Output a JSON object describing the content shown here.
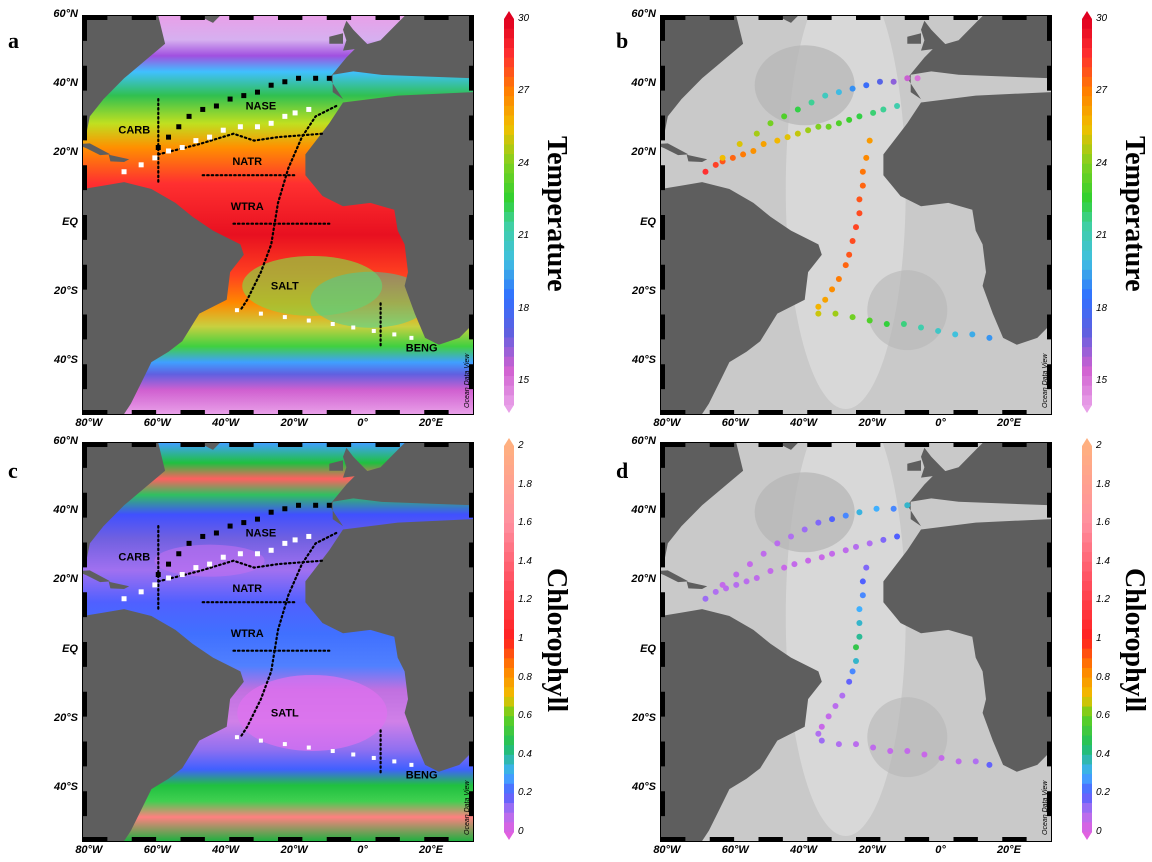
{
  "panels": [
    {
      "letter": "a",
      "variable": "Temperature",
      "background": "temperature-field",
      "dots": false
    },
    {
      "letter": "b",
      "variable": "Temperature",
      "background": "bathymetry-gray",
      "dots": true
    },
    {
      "letter": "c",
      "variable": "Chlorophyll",
      "background": "chlorophyll-field",
      "dots": false
    },
    {
      "letter": "d",
      "variable": "Chlorophyll",
      "background": "bathymetry-gray",
      "dots": true
    }
  ],
  "lat_labels": [
    "60°N",
    "40°N",
    "20°N",
    "EQ",
    "20°S",
    "40°S"
  ],
  "lon_labels": [
    "80°W",
    "60°W",
    "40°W",
    "20°W",
    "0°",
    "20°E"
  ],
  "temperature_scale": {
    "ticks": [
      "30",
      "27",
      "24",
      "21",
      "18",
      "15"
    ],
    "min": 14,
    "max": 30
  },
  "chlorophyll_scale": {
    "ticks": [
      "2",
      "1.8",
      "1.6",
      "1.4",
      "1.2",
      "1",
      "0.8",
      "0.6",
      "0.4",
      "0.2",
      "0"
    ],
    "min": 0,
    "max": 2
  },
  "regions_temperature": [
    "CARB",
    "NASE",
    "NATR",
    "WTRA",
    "SALT",
    "BENG"
  ],
  "regions_chlorophyll": [
    "CARB",
    "NASE",
    "NATR",
    "WTRA",
    "SATL",
    "BENG"
  ],
  "credit": "Ocean Data View",
  "colors": {
    "land": "#5e5e5e",
    "bathy": "#cfcfcf"
  }
}
